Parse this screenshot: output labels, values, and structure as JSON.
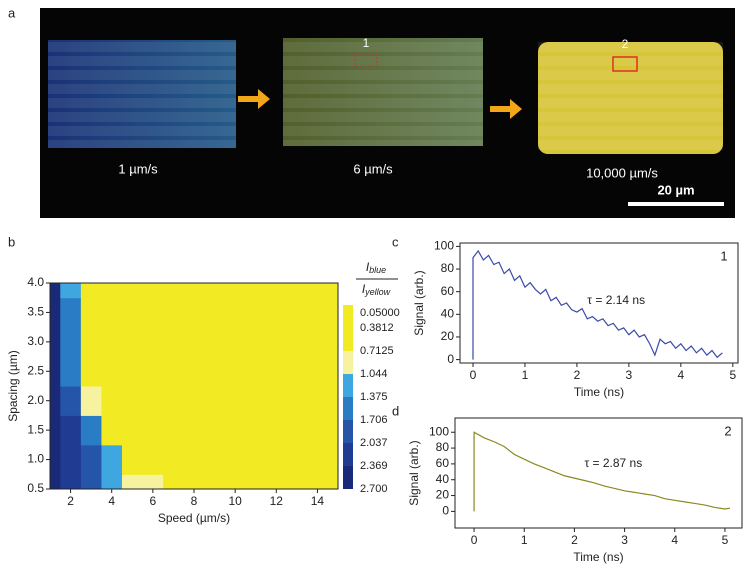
{
  "figure": {
    "panels": [
      "a",
      "b",
      "c",
      "d"
    ],
    "image": {
      "speeds": [
        "1 µm/s",
        "6 µm/s",
        "10,000 µm/s"
      ],
      "regions": [
        "1",
        "2"
      ],
      "scale_bar": "20 µm"
    }
  },
  "chart_data": [
    {
      "type": "contour",
      "xlabel": "Speed (µm/s)",
      "ylabel": "Spacing (µm)",
      "x": [
        1,
        2,
        3,
        4,
        5,
        6,
        7,
        8,
        9,
        10,
        11,
        12,
        13,
        14,
        15
      ],
      "y": [
        0.5,
        1.0,
        1.5,
        2.0,
        2.5,
        3.0,
        3.5,
        4.0
      ],
      "z": [
        [
          2.6,
          2.3,
          1.9,
          1.2,
          0.9,
          0.8,
          0.6,
          0.05,
          0.05,
          0.05,
          0.05,
          0.05,
          0.05,
          0.05,
          0.05
        ],
        [
          2.6,
          2.3,
          1.8,
          1.1,
          0.6,
          0.5,
          0.3,
          0.05,
          0.05,
          0.05,
          0.05,
          0.05,
          0.05,
          0.05,
          0.05
        ],
        [
          2.6,
          2.2,
          1.5,
          0.6,
          0.2,
          0.2,
          0.05,
          0.05,
          0.05,
          0.05,
          0.05,
          0.05,
          0.05,
          0.05,
          0.05
        ],
        [
          2.5,
          1.9,
          0.9,
          0.2,
          0.05,
          0.05,
          0.05,
          0.05,
          0.05,
          0.05,
          0.05,
          0.05,
          0.05,
          0.05,
          0.05
        ],
        [
          2.5,
          1.6,
          0.5,
          0.1,
          0.05,
          0.05,
          0.05,
          0.05,
          0.05,
          0.05,
          0.05,
          0.05,
          0.05,
          0.05,
          0.05
        ],
        [
          2.5,
          1.5,
          0.3,
          0.05,
          0.05,
          0.05,
          0.05,
          0.05,
          0.05,
          0.05,
          0.05,
          0.05,
          0.05,
          0.05,
          0.05
        ],
        [
          2.5,
          1.4,
          0.2,
          0.05,
          0.05,
          0.05,
          0.05,
          0.05,
          0.05,
          0.05,
          0.05,
          0.05,
          0.05,
          0.05,
          0.05
        ],
        [
          2.5,
          1.3,
          0.2,
          0.05,
          0.05,
          0.05,
          0.05,
          0.05,
          0.05,
          0.05,
          0.05,
          0.05,
          0.05,
          0.05,
          0.05
        ]
      ],
      "xlim": [
        1,
        15
      ],
      "xticks": [
        2,
        4,
        6,
        8,
        10,
        12,
        14
      ],
      "ylim": [
        0.5,
        4.0
      ],
      "yticks": [
        0.5,
        {
          "value": 1,
          "label": "1.0"
        },
        1.5,
        {
          "value": 2,
          "label": "2.0"
        },
        2.5,
        {
          "value": 3,
          "label": "3.0"
        },
        3.5,
        {
          "value": 4,
          "label": "4.0"
        }
      ],
      "levels": [
        {
          "value": 0.05,
          "label": "0.05000"
        },
        0.3812,
        0.7125,
        1.044,
        1.375,
        1.706,
        2.037,
        2.369,
        {
          "value": 2.7,
          "label": "2.700"
        }
      ],
      "colors": [
        "#f2ea22",
        "#f2ea22",
        "#f7f2a0",
        "#3fa7e0",
        "#2a7cc4",
        "#2555a8",
        "#1f3b92",
        "#1a2a78"
      ],
      "colorbar_label": {
        "numerator": {
          "symbol": "I",
          "sub": "blue"
        },
        "denominator": {
          "symbol": "I",
          "sub": "yellow"
        }
      }
    },
    {
      "type": "line",
      "xlabel": "Time (ns)",
      "ylabel": "Signal (arb.)",
      "annotation": "τ = 2.14 ns",
      "panel_number": "1",
      "xlim": [
        -0.25,
        5.1
      ],
      "xticks": [
        0,
        1,
        2,
        3,
        4,
        5
      ],
      "ylim": [
        -3,
        103
      ],
      "yticks": [
        0,
        20,
        40,
        60,
        80,
        100
      ],
      "series": [
        {
          "color": "#3a4aa8",
          "x": [
            0,
            0,
            0.1,
            0.2,
            0.3,
            0.4,
            0.5,
            0.6,
            0.7,
            0.8,
            0.9,
            1.0,
            1.1,
            1.2,
            1.3,
            1.4,
            1.5,
            1.6,
            1.7,
            1.8,
            1.9,
            2.0,
            2.1,
            2.2,
            2.3,
            2.4,
            2.5,
            2.6,
            2.7,
            2.8,
            2.9,
            3.0,
            3.1,
            3.2,
            3.3,
            3.4,
            3.5,
            3.6,
            3.7,
            3.8,
            3.9,
            4.0,
            4.1,
            4.2,
            4.3,
            4.4,
            4.5,
            4.6,
            4.7,
            4.8
          ],
          "values": [
            0,
            90,
            96,
            88,
            92,
            84,
            86,
            76,
            80,
            70,
            74,
            64,
            68,
            62,
            58,
            62,
            52,
            55,
            48,
            50,
            44,
            42,
            45,
            36,
            38,
            34,
            36,
            30,
            32,
            26,
            28,
            22,
            26,
            20,
            22,
            14,
            4,
            18,
            14,
            16,
            10,
            14,
            8,
            12,
            6,
            10,
            4,
            8,
            2,
            6
          ]
        }
      ]
    },
    {
      "type": "line",
      "xlabel": "Time (ns)",
      "ylabel": "Signal (arb.)",
      "annotation": "τ = 2.87 ns",
      "panel_number": "2",
      "xlim": [
        -0.38,
        5.34
      ],
      "xticks": [
        0,
        1,
        2,
        3,
        4,
        5
      ],
      "ylim": [
        -21,
        118
      ],
      "yticks": [
        0,
        20,
        40,
        60,
        80,
        100
      ],
      "series": [
        {
          "color": "#8a8a1e",
          "x": [
            0,
            0,
            0.2,
            0.4,
            0.6,
            0.8,
            1.0,
            1.2,
            1.4,
            1.6,
            1.8,
            2.0,
            2.2,
            2.4,
            2.6,
            2.8,
            3.0,
            3.2,
            3.4,
            3.6,
            3.8,
            4.0,
            4.2,
            4.4,
            4.6,
            4.8,
            5.0,
            5.1
          ],
          "values": [
            0,
            100,
            93,
            88,
            82,
            72,
            66,
            60,
            55,
            50,
            45,
            42,
            39,
            36,
            32,
            29,
            26,
            24,
            22,
            20,
            16,
            14,
            12,
            10,
            8,
            5,
            3,
            4
          ]
        }
      ]
    }
  ]
}
